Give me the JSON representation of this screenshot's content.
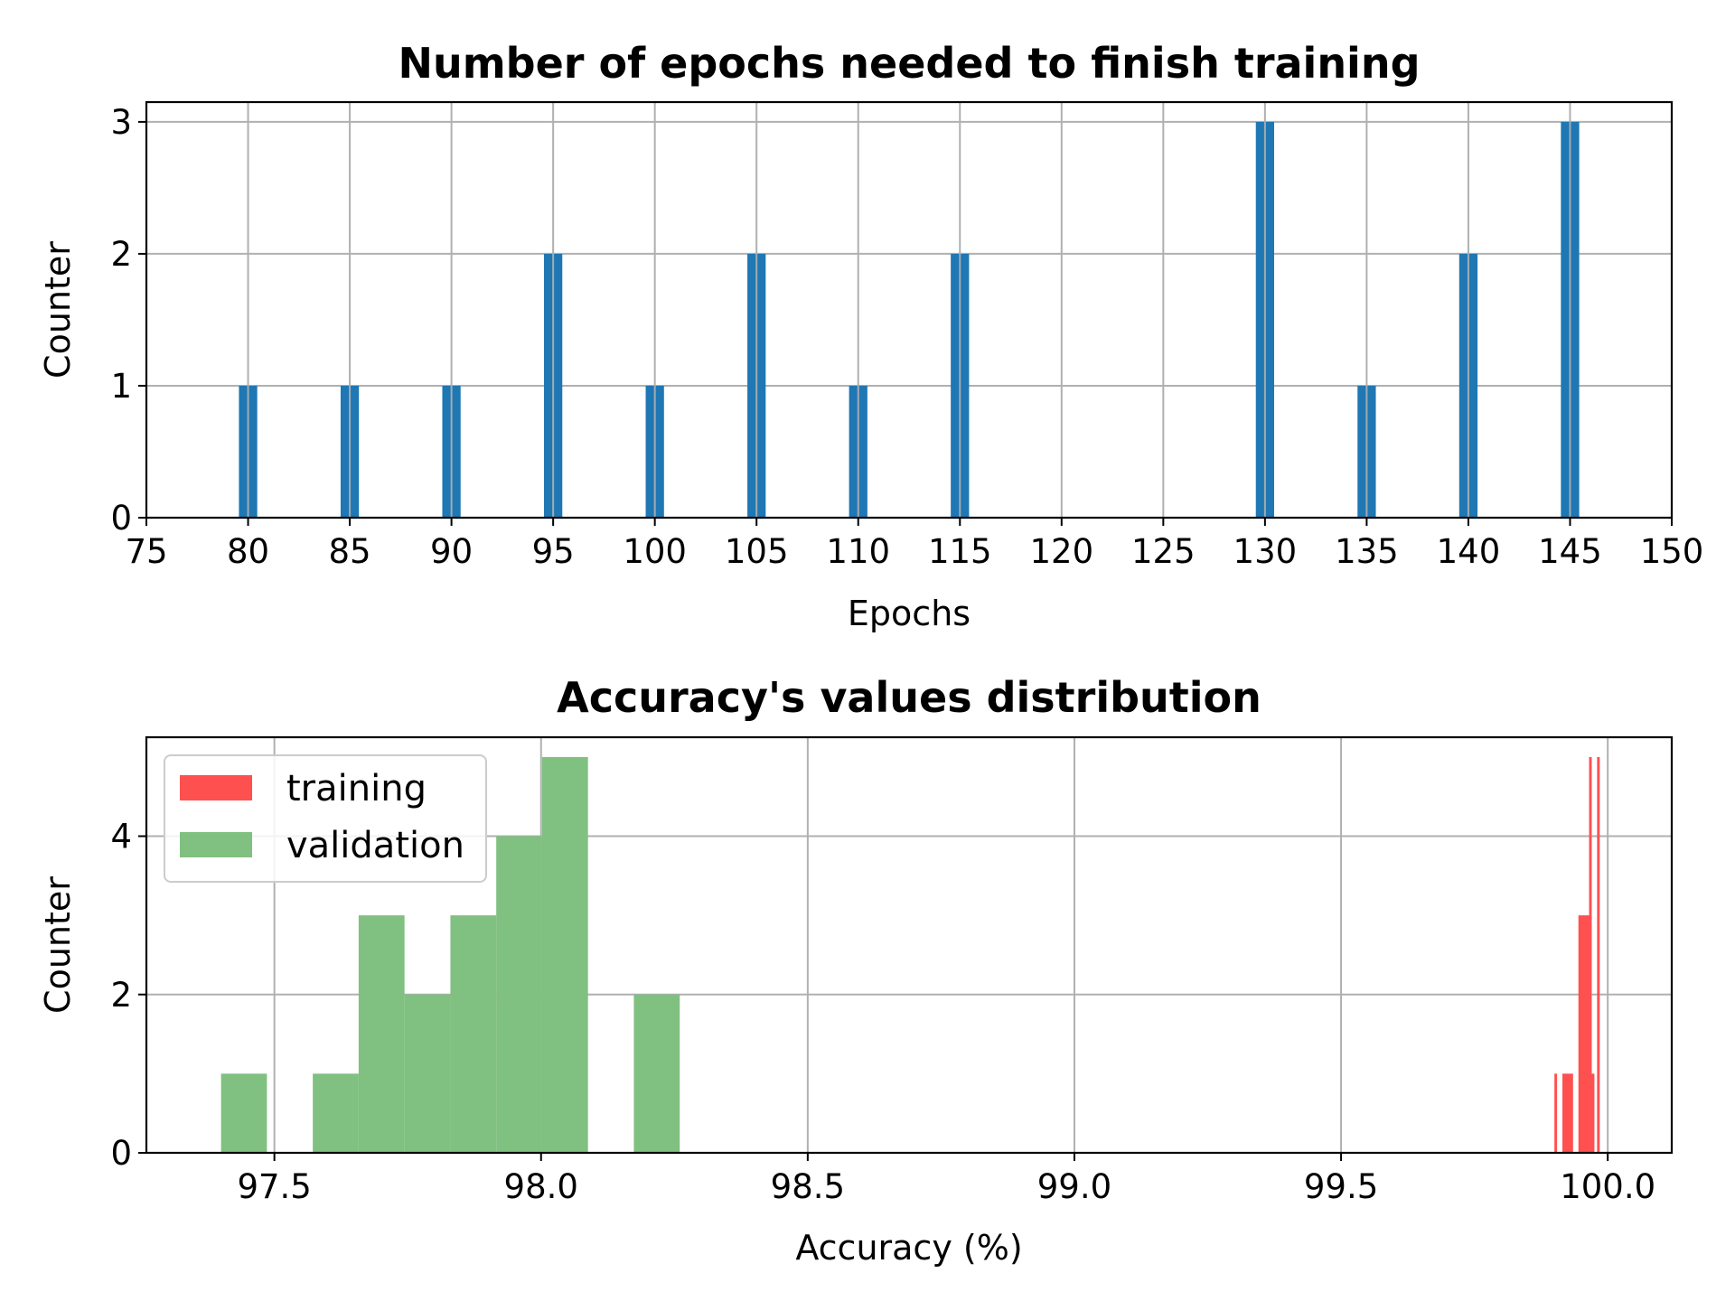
{
  "chart_data": [
    {
      "type": "bar",
      "title": "Number of epochs needed to finish training",
      "xlabel": "Epochs",
      "ylabel": "Counter",
      "xlim": [
        75,
        150
      ],
      "ylim": [
        0,
        3.15
      ],
      "xticks": [
        75,
        80,
        85,
        90,
        95,
        100,
        105,
        110,
        115,
        120,
        125,
        130,
        135,
        140,
        145,
        150
      ],
      "yticks": [
        0,
        1,
        2,
        3
      ],
      "grid": true,
      "color": "#1f77b4",
      "bar_width": 0.9,
      "x": [
        80,
        85,
        90,
        95,
        100,
        105,
        110,
        115,
        130,
        135,
        140,
        145
      ],
      "values": [
        1,
        1,
        1,
        2,
        1,
        2,
        1,
        2,
        3,
        1,
        2,
        3
      ]
    },
    {
      "type": "bar",
      "title": "Accuracy's values distribution",
      "xlabel": "Accuracy (%)",
      "ylabel": "Counter",
      "xlim": [
        97.26,
        100.12
      ],
      "ylim": [
        0,
        5.25
      ],
      "xticks": [
        97.5,
        98.0,
        98.5,
        99.0,
        99.5,
        100.0
      ],
      "xtick_labels": [
        "97.5",
        "98.0",
        "98.5",
        "99.0",
        "99.5",
        "100.0"
      ],
      "yticks": [
        0,
        2,
        4
      ],
      "grid": true,
      "legend": "upper-left",
      "series": [
        {
          "name": "training",
          "color": "#ff5050",
          "bins": [
            [
              99.9,
              99.905,
              1
            ],
            [
              99.915,
              99.935,
              1
            ],
            [
              99.945,
              99.965,
              3
            ],
            [
              99.965,
              99.97,
              5
            ],
            [
              99.97,
              99.975,
              1
            ],
            [
              99.98,
              99.985,
              5
            ]
          ]
        },
        {
          "name": "validation",
          "color": "#80c080",
          "bins": [
            [
              97.4,
              97.486,
              1
            ],
            [
              97.572,
              97.658,
              1
            ],
            [
              97.658,
              97.744,
              3
            ],
            [
              97.744,
              97.83,
              2
            ],
            [
              97.83,
              97.916,
              3
            ],
            [
              97.916,
              98.002,
              4
            ],
            [
              98.002,
              98.088,
              5
            ],
            [
              98.174,
              98.26,
              2
            ]
          ]
        }
      ]
    }
  ]
}
